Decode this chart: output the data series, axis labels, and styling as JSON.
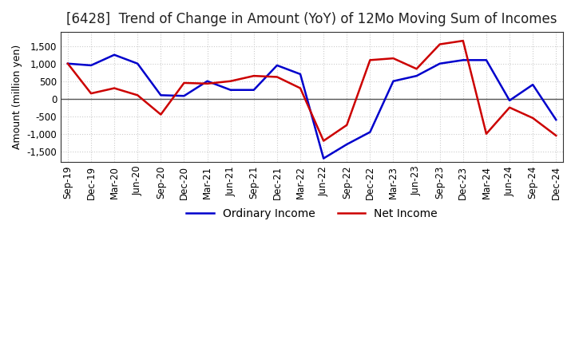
{
  "title": "[6428]  Trend of Change in Amount (YoY) of 12Mo Moving Sum of Incomes",
  "ylabel": "Amount (million yen)",
  "ylim": [
    -1800,
    1900
  ],
  "yticks": [
    -1500,
    -1000,
    -500,
    0,
    500,
    1000,
    1500
  ],
  "x_labels": [
    "Sep-19",
    "Dec-19",
    "Mar-20",
    "Jun-20",
    "Sep-20",
    "Dec-20",
    "Mar-21",
    "Jun-21",
    "Sep-21",
    "Dec-21",
    "Mar-22",
    "Jun-22",
    "Sep-22",
    "Dec-22",
    "Mar-23",
    "Jun-23",
    "Sep-23",
    "Dec-23",
    "Mar-24",
    "Jun-24",
    "Sep-24",
    "Dec-24"
  ],
  "ordinary_income": [
    1000,
    950,
    1250,
    1000,
    100,
    80,
    500,
    250,
    250,
    950,
    700,
    -1700,
    -1300,
    -950,
    500,
    650,
    1000,
    1100,
    1100,
    -50,
    400,
    -600
  ],
  "net_income": [
    1000,
    150,
    300,
    100,
    -450,
    450,
    430,
    500,
    650,
    620,
    300,
    -1200,
    -750,
    1100,
    1150,
    850,
    1550,
    1650,
    -1000,
    -250,
    -550,
    -1050
  ],
  "ordinary_color": "#0000cc",
  "net_color": "#cc0000",
  "grid_color": "#cccccc",
  "spine_color": "#333333",
  "background_color": "#ffffff",
  "title_fontsize": 12,
  "axis_fontsize": 9,
  "tick_fontsize": 8.5,
  "legend_fontsize": 10
}
